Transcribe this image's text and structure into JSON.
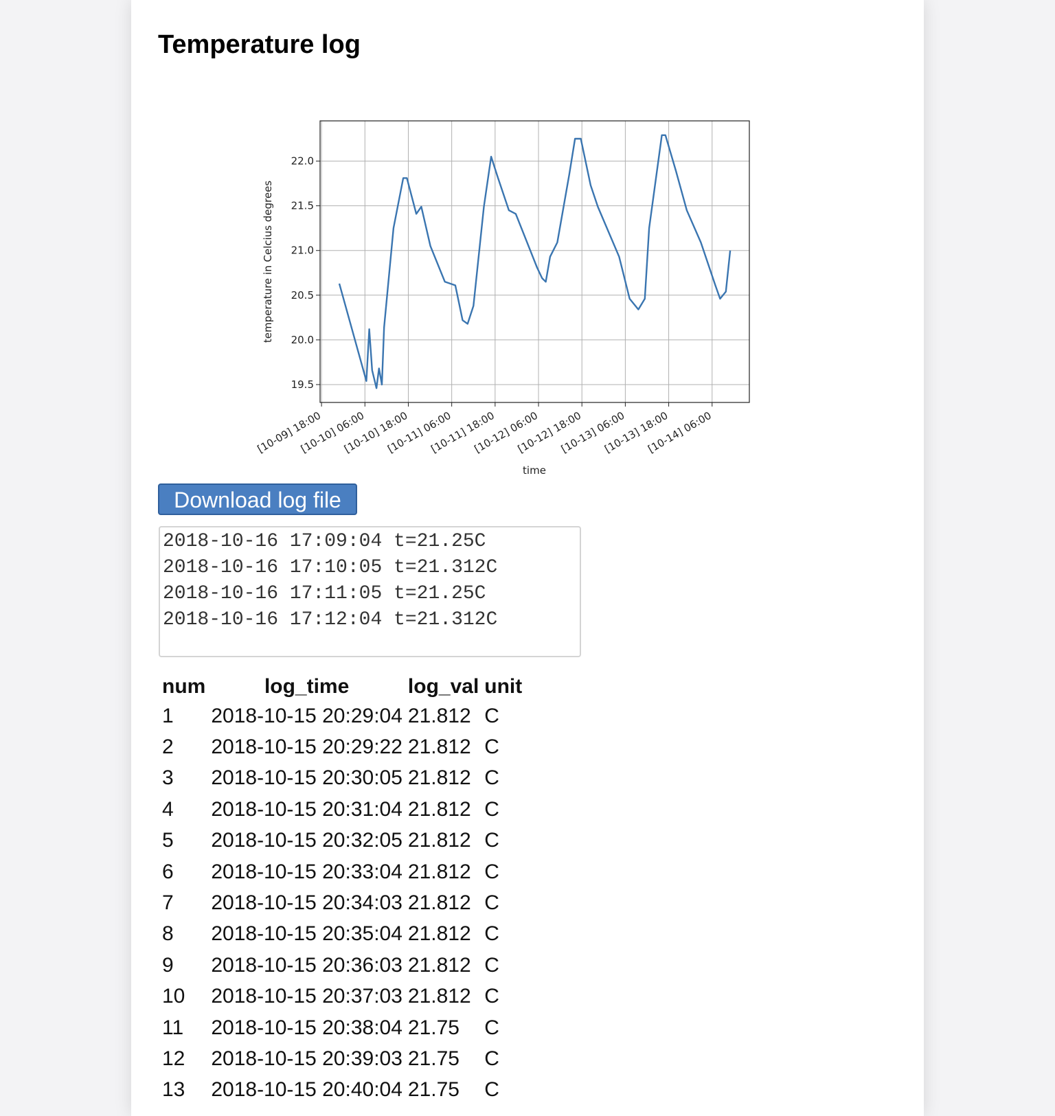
{
  "page": {
    "title": "Temperature log"
  },
  "chart_data": {
    "type": "line",
    "x_label": "time",
    "y_label": "temperature in Celcius degrees",
    "x": [
      "[10-09] 22:55",
      "[10-10] 06:24",
      "[10-10] 07:12",
      "[10-10] 08:00",
      "[10-10] 09:12",
      "[10-10] 09:54",
      "[10-10] 10:42",
      "[10-10] 11:18",
      "[10-10] 12:18",
      "[10-10] 13:54",
      "[10-10] 16:36",
      "[10-10] 17:36",
      "[10-10] 20:12",
      "[10-10] 21:36",
      "[10-11] 00:06",
      "[10-11] 04:06",
      "[10-11] 07:00",
      "[10-11] 09:00",
      "[10-11] 10:24",
      "[10-11] 12:00",
      "[10-11] 14:54",
      "[10-11] 16:54",
      "[10-11] 18:48",
      "[10-11] 21:48",
      "[10-11] 23:42",
      "[10-12] 05:36",
      "[10-12] 07:00",
      "[10-12] 08:00",
      "[10-12] 09:12",
      "[10-12] 11:12",
      "[10-12] 14:30",
      "[10-12] 16:06",
      "[10-12] 17:42",
      "[10-12] 20:24",
      "[10-12] 22:24",
      "[10-13] 04:18",
      "[10-13] 07:12",
      "[10-13] 09:36",
      "[10-13] 11:24",
      "[10-13] 12:36",
      "[10-13] 16:06",
      "[10-13] 17:06",
      "[10-13] 20:00",
      "[10-13] 23:00",
      "[10-14] 02:54",
      "[10-14] 06:54",
      "[10-14] 08:12",
      "[10-14] 09:48",
      "[10-14] 11:00"
    ],
    "values": [
      20.63,
      19.54,
      20.12,
      19.66,
      19.46,
      19.68,
      19.5,
      20.14,
      20.57,
      21.25,
      21.81,
      21.81,
      21.41,
      21.49,
      21.05,
      20.65,
      20.61,
      20.22,
      20.18,
      20.38,
      21.49,
      22.05,
      21.81,
      21.45,
      21.41,
      20.81,
      20.69,
      20.65,
      20.93,
      21.09,
      21.85,
      22.25,
      22.25,
      21.73,
      21.49,
      20.93,
      20.46,
      20.34,
      20.46,
      21.25,
      22.29,
      22.29,
      21.89,
      21.45,
      21.09,
      20.61,
      20.46,
      20.54,
      21.0
    ],
    "color": "#3a75b0",
    "xlim": [
      "[10-09] 17:36",
      "[10-14] 16:18"
    ],
    "xticks": [
      "[10-09] 18:00",
      "[10-10] 06:00",
      "[10-10] 18:00",
      "[10-11] 06:00",
      "[10-11] 18:00",
      "[10-12] 06:00",
      "[10-12] 18:00",
      "[10-13] 06:00",
      "[10-13] 18:00",
      "[10-14] 06:00"
    ],
    "ylim": [
      19.3,
      22.45
    ],
    "yticks": [
      19.5,
      {
        "value": 20,
        "label": "20.0"
      },
      20.5,
      {
        "value": 21,
        "label": "21.0"
      },
      21.5,
      {
        "value": 22,
        "label": "22.0"
      }
    ],
    "grid": true
  },
  "button": {
    "label": "Download log file"
  },
  "log_text": {
    "lines": [
      "2018-10-16 17:09:04 t=21.25C",
      "2018-10-16 17:10:05 t=21.312C",
      "2018-10-16 17:11:05 t=21.25C",
      "2018-10-16 17:12:04 t=21.312C"
    ]
  },
  "table": {
    "header": [
      "num",
      "log_time",
      "log_val",
      "unit"
    ],
    "rows": [
      [
        1,
        "2018-10-15 20:29:04",
        21.812,
        "C"
      ],
      [
        2,
        "2018-10-15 20:29:22",
        21.812,
        "C"
      ],
      [
        3,
        "2018-10-15 20:30:05",
        21.812,
        "C"
      ],
      [
        4,
        "2018-10-15 20:31:04",
        21.812,
        "C"
      ],
      [
        5,
        "2018-10-15 20:32:05",
        21.812,
        "C"
      ],
      [
        6,
        "2018-10-15 20:33:04",
        21.812,
        "C"
      ],
      [
        7,
        "2018-10-15 20:34:03",
        21.812,
        "C"
      ],
      [
        8,
        "2018-10-15 20:35:04",
        21.812,
        "C"
      ],
      [
        9,
        "2018-10-15 20:36:03",
        21.812,
        "C"
      ],
      [
        10,
        "2018-10-15 20:37:03",
        21.812,
        "C"
      ],
      [
        11,
        "2018-10-15 20:38:04",
        21.75,
        "C"
      ],
      [
        12,
        "2018-10-15 20:39:03",
        21.75,
        "C"
      ],
      [
        13,
        "2018-10-15 20:40:04",
        21.75,
        "C"
      ]
    ]
  }
}
